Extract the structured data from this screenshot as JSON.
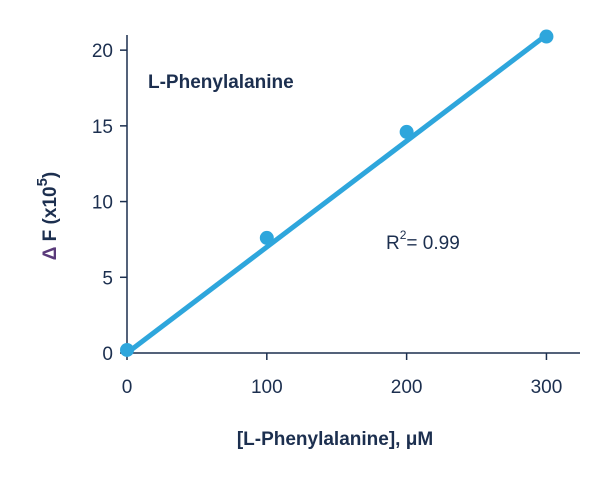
{
  "chart_data": {
    "type": "scatter",
    "title": "L-Phenylalanine",
    "x": [
      0,
      100,
      200,
      300
    ],
    "values": [
      0.2,
      7.6,
      14.6,
      20.9
    ],
    "color": "#2ea6dc",
    "fit": {
      "x": [
        0,
        300
      ],
      "values": [
        0,
        21
      ]
    },
    "xlim": [
      0,
      324
    ],
    "xticks": [
      0,
      100,
      200,
      300
    ],
    "ylim": [
      0,
      21
    ],
    "yticks": [
      0,
      5,
      10,
      15,
      20
    ],
    "xlabel": "[L-Phenylalanine], μM",
    "ylabel_parts": [
      "Δ",
      "F (x10",
      "5",
      ")"
    ],
    "annotation_parts": [
      "R",
      "2",
      "= 0.99"
    ]
  }
}
